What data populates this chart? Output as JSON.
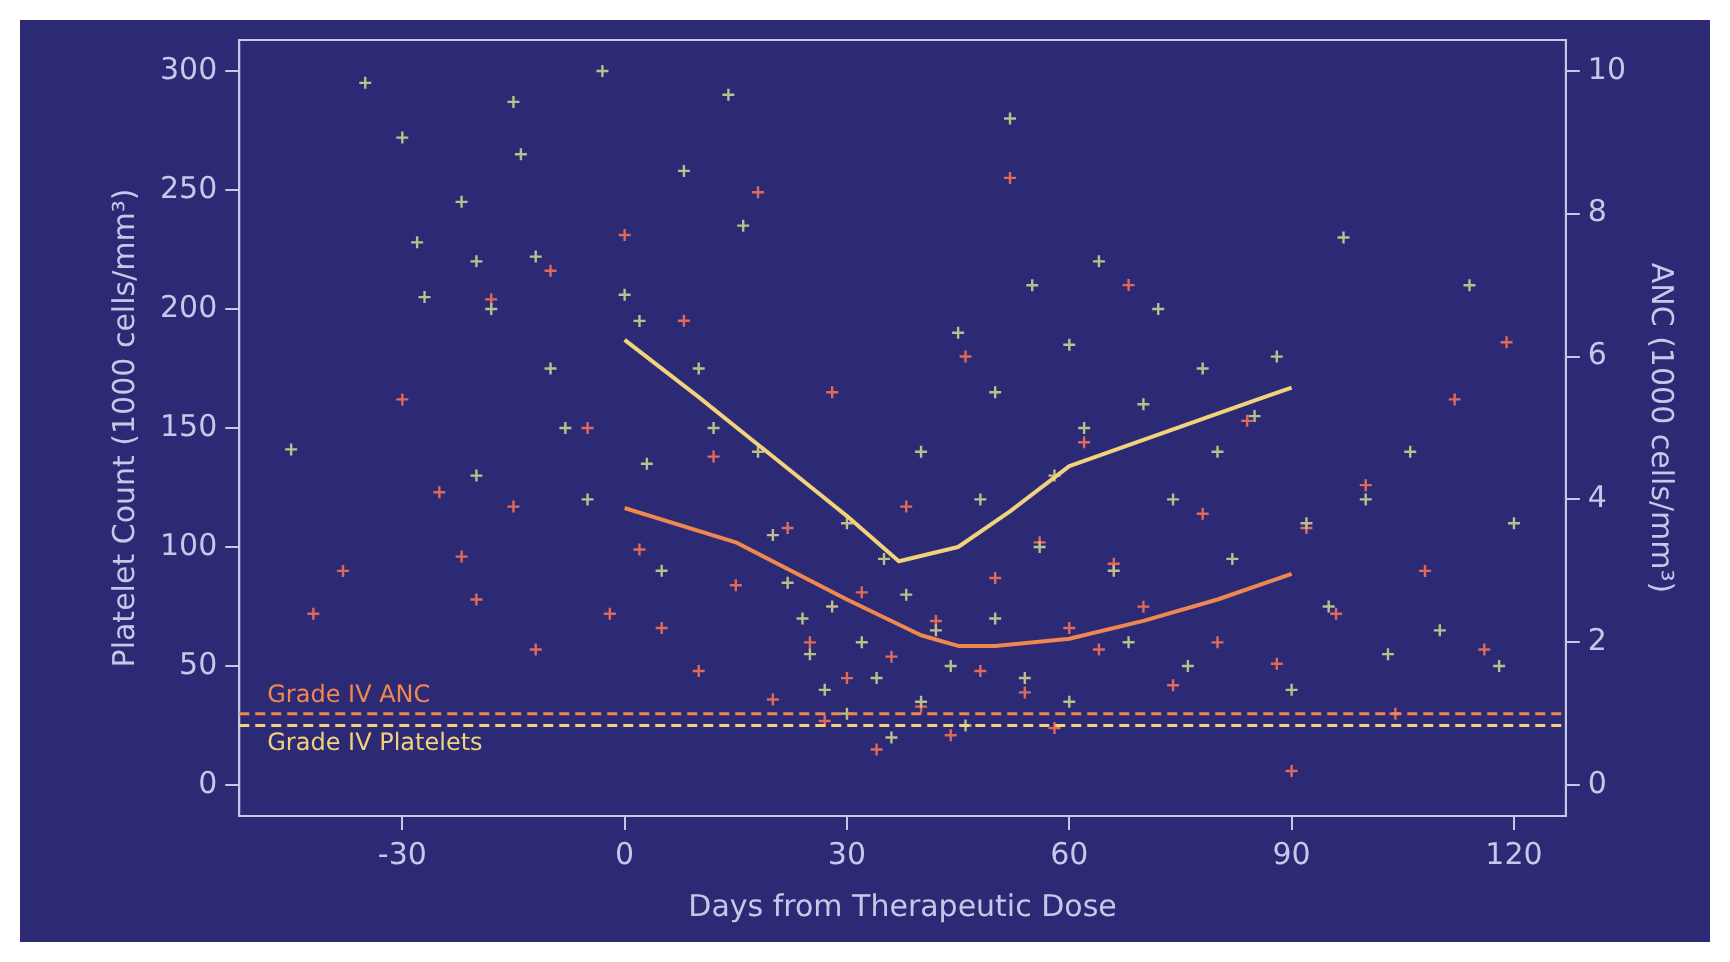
{
  "chart_data": {
    "type": "scatter",
    "xlabel": "Days from Therapeutic Dose",
    "ylabel": "Platelet Count (1000 cells/mm³)",
    "y2label": "ANC (1000 cells/mm³)",
    "xlim": [
      -52,
      127
    ],
    "xticks": [
      -30,
      0,
      30,
      60,
      90,
      120
    ],
    "ylim": [
      -13,
      313
    ],
    "yticks": [
      0,
      50,
      100,
      150,
      200,
      250,
      300
    ],
    "y2lim": [
      -0.43,
      10.43
    ],
    "y2ticks": [
      0,
      2,
      4,
      6,
      8,
      10
    ],
    "grid": false,
    "legend": false,
    "series": [
      {
        "type": "scatter",
        "axis": "y",
        "color": "#b9c08a",
        "marker": "cross",
        "x": [
          -45,
          -35,
          -30,
          -28,
          -27,
          -22,
          -20,
          -18,
          -20,
          -15,
          -14,
          -12,
          -10,
          -8,
          -5,
          -3,
          0,
          2,
          3,
          5,
          8,
          10,
          12,
          14,
          16,
          18,
          20,
          22,
          24,
          25,
          27,
          28,
          30,
          30,
          32,
          34,
          35,
          36,
          38,
          40,
          40,
          42,
          44,
          45,
          46,
          48,
          50,
          50,
          52,
          54,
          55,
          56,
          58,
          60,
          60,
          62,
          64,
          66,
          68,
          70,
          72,
          74,
          76,
          78,
          80,
          82,
          85,
          88,
          90,
          92,
          95,
          97,
          100,
          103,
          106,
          110,
          114,
          118,
          120
        ],
        "values": [
          141,
          295,
          272,
          228,
          205,
          245,
          220,
          200,
          130,
          287,
          265,
          222,
          175,
          150,
          120,
          300,
          206,
          195,
          135,
          90,
          258,
          175,
          150,
          290,
          235,
          140,
          105,
          85,
          70,
          55,
          40,
          75,
          110,
          30,
          60,
          45,
          95,
          20,
          80,
          140,
          35,
          65,
          50,
          190,
          25,
          120,
          70,
          165,
          280,
          45,
          210,
          100,
          130,
          35,
          185,
          150,
          220,
          90,
          60,
          160,
          200,
          120,
          50,
          175,
          140,
          95,
          155,
          180,
          40,
          110,
          75,
          230,
          120,
          55,
          140,
          65,
          210,
          50,
          110
        ]
      },
      {
        "type": "scatter",
        "axis": "y2",
        "color": "#e0695a",
        "marker": "cross",
        "x": [
          -42,
          -38,
          -30,
          -25,
          -22,
          -20,
          -18,
          -15,
          -12,
          -10,
          -5,
          -2,
          0,
          2,
          5,
          8,
          10,
          12,
          15,
          18,
          20,
          22,
          25,
          27,
          28,
          30,
          32,
          34,
          36,
          38,
          40,
          42,
          44,
          46,
          48,
          50,
          52,
          54,
          56,
          58,
          60,
          62,
          64,
          66,
          68,
          70,
          74,
          78,
          80,
          84,
          88,
          90,
          92,
          96,
          100,
          104,
          108,
          112,
          116,
          119
        ],
        "values": [
          2.4,
          3.0,
          5.4,
          4.1,
          3.2,
          2.6,
          6.8,
          3.9,
          1.9,
          7.2,
          5.0,
          2.4,
          7.7,
          3.3,
          2.2,
          6.5,
          1.6,
          4.6,
          2.8,
          8.3,
          1.2,
          3.6,
          2.0,
          0.9,
          5.5,
          1.5,
          2.7,
          0.5,
          1.8,
          3.9,
          1.1,
          2.3,
          0.7,
          6.0,
          1.6,
          2.9,
          8.5,
          1.3,
          3.4,
          0.8,
          2.2,
          4.8,
          1.9,
          3.1,
          7.0,
          2.5,
          1.4,
          3.8,
          2.0,
          5.1,
          1.7,
          0.2,
          3.6,
          2.4,
          4.2,
          1.0,
          3.0,
          5.4,
          1.9,
          6.2
        ]
      },
      {
        "type": "line",
        "axis": "y",
        "color": "#f2d27a",
        "marker": "none",
        "x": [
          0,
          10,
          20,
          30,
          37,
          45,
          52,
          60,
          70,
          80,
          90
        ],
        "values": [
          187,
          163,
          138,
          113,
          94,
          100,
          115,
          134,
          145,
          156,
          167
        ]
      },
      {
        "type": "line",
        "axis": "y2",
        "color": "#f0874f",
        "marker": "none",
        "x": [
          0,
          15,
          30,
          40,
          45,
          50,
          60,
          70,
          80,
          90
        ],
        "values": [
          3.88,
          3.4,
          2.6,
          2.1,
          1.95,
          1.95,
          2.05,
          2.3,
          2.6,
          2.96
        ]
      }
    ],
    "ref_lines": [
      {
        "axis": "y2",
        "value": 1,
        "label": "Grade IV ANC",
        "color": "#f0874f",
        "line_style": "dashed"
      },
      {
        "axis": "y",
        "value": 25,
        "label": "Grade IV Platelets",
        "color": "#f2d27a",
        "line_style": "dashed"
      }
    ]
  }
}
